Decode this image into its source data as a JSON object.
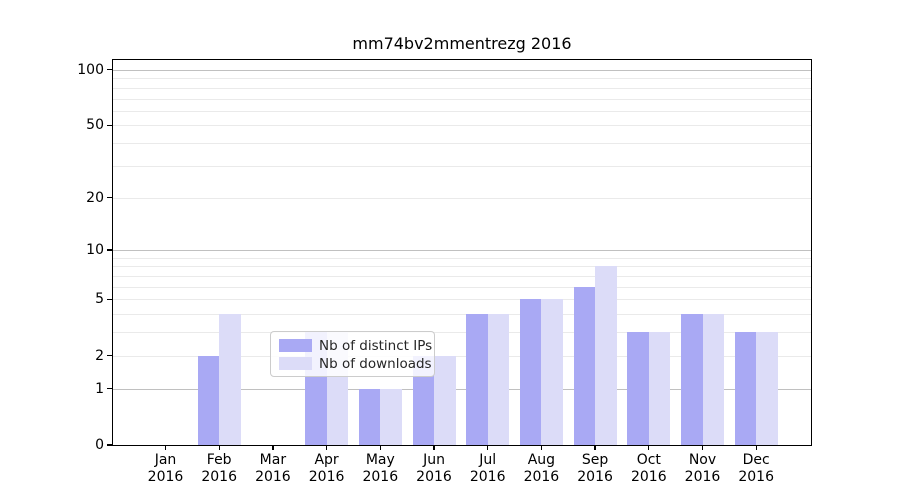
{
  "chart_data": {
    "type": "bar",
    "title": "mm74bv2mmentrezg 2016",
    "categories": [
      "Jan",
      "Feb",
      "Mar",
      "Apr",
      "May",
      "Jun",
      "Jul",
      "Aug",
      "Sep",
      "Oct",
      "Nov",
      "Dec"
    ],
    "x_year_label": "2016",
    "series": [
      {
        "name": "Nb of distinct IPs",
        "color": "#a9a9f4",
        "values": [
          0,
          2,
          0,
          3,
          1,
          2,
          4,
          5,
          6,
          3,
          4,
          3
        ]
      },
      {
        "name": "Nb of downloads",
        "color": "#dcdcf8",
        "values": [
          0,
          4,
          0,
          3,
          1,
          2,
          4,
          5,
          8,
          3,
          4,
          3
        ]
      }
    ],
    "xlabel": "",
    "ylabel": "",
    "yscale": "log10(value+1)",
    "ylim": [
      0,
      113
    ],
    "y_ticks": [
      100,
      50,
      20,
      10,
      5,
      2,
      1,
      0
    ],
    "y_major_gridlines": [
      1,
      10,
      100
    ],
    "y_minor_gridlines": [
      2,
      3,
      4,
      5,
      6,
      7,
      8,
      9,
      20,
      30,
      40,
      50,
      60,
      70,
      80,
      90
    ],
    "grid": "on",
    "legend_position": "inside lower-center"
  },
  "colors": {
    "background": "#ffffff",
    "spine": "#000000",
    "major_grid": "#c0c0c0",
    "minor_grid": "#eaeaea",
    "legend_border": "#cccccc"
  }
}
